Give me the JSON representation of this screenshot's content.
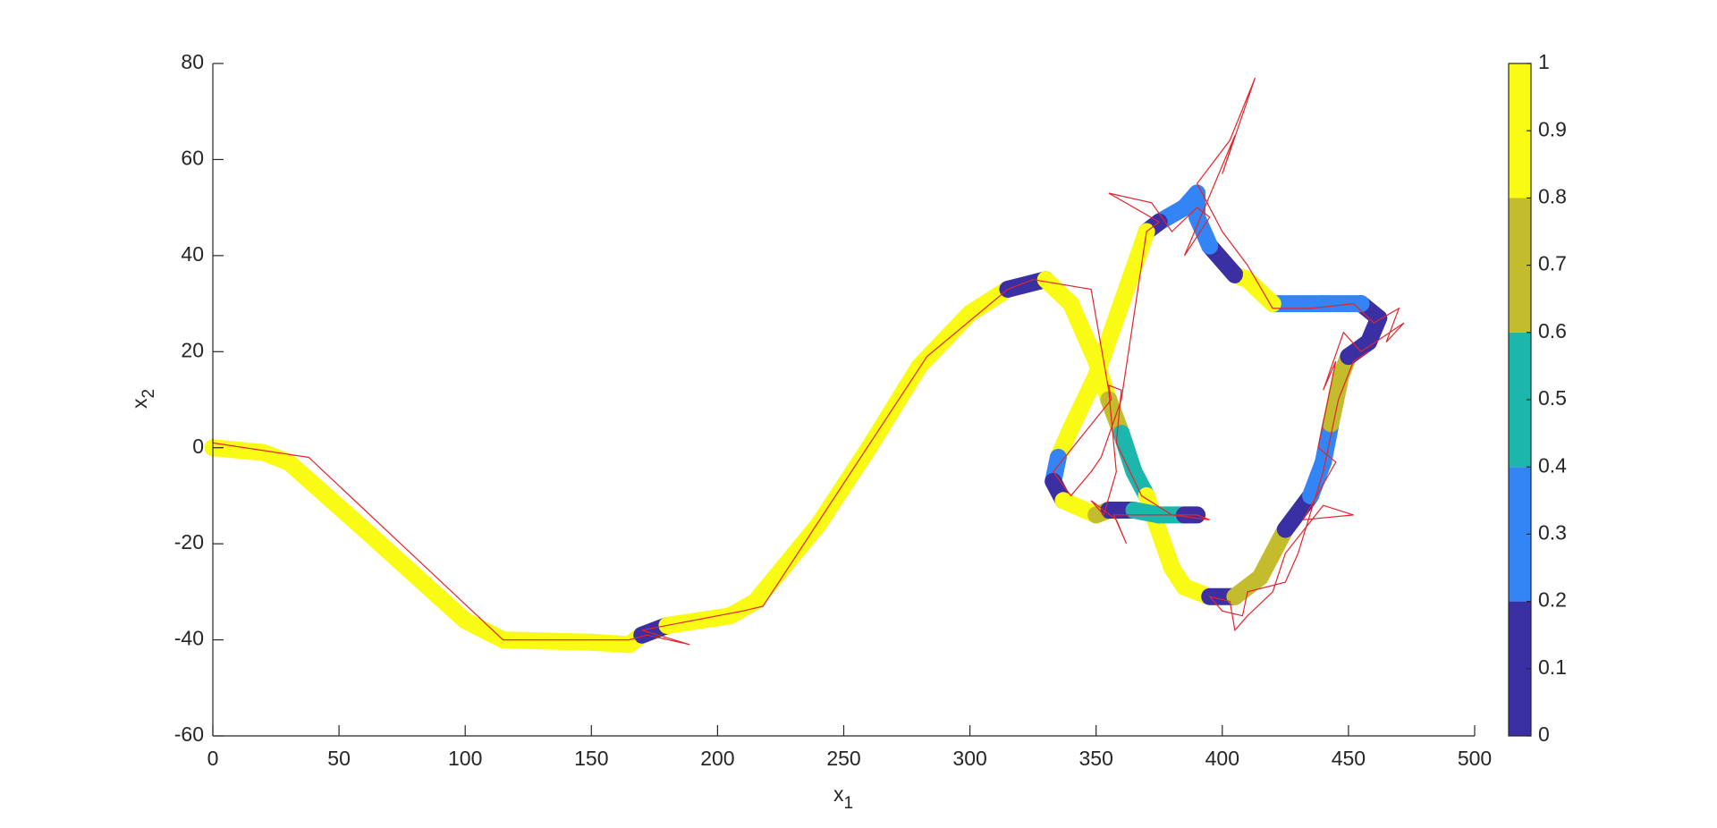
{
  "chart_data": {
    "type": "trajectory",
    "xlabel": "x",
    "xlabel_sub": "1",
    "ylabel": "x",
    "ylabel_sub": "2",
    "xlim": [
      0,
      500
    ],
    "xticks": [
      0,
      50,
      100,
      150,
      200,
      250,
      300,
      350,
      400,
      450,
      500
    ],
    "ylim": [
      -60,
      80
    ],
    "yticks": [
      -60,
      -40,
      -20,
      0,
      20,
      40,
      60,
      80
    ],
    "colorbar": {
      "lim": [
        0,
        1
      ],
      "ticks": [
        0,
        0.1,
        0.2,
        0.3,
        0.4,
        0.5,
        0.6,
        0.7,
        0.8,
        0.9,
        1
      ],
      "bounds": [
        0,
        0.2,
        0.4,
        0.6,
        0.8,
        1
      ],
      "colors": [
        "#3a2fa3",
        "#3384f5",
        "#1db6ad",
        "#c3bc2d",
        "#f9fb15"
      ]
    },
    "series": [
      {
        "x": [
          0,
          20,
          30,
          60,
          100,
          115,
          150,
          165,
          170,
          180,
          205,
          215,
          240,
          260,
          280,
          300,
          315,
          330,
          340,
          350,
          355,
          360,
          365,
          370,
          380,
          385,
          395,
          405,
          415,
          425,
          435,
          440,
          443,
          447,
          450,
          458,
          462,
          455,
          440,
          420,
          410,
          405,
          395,
          390,
          390,
          385,
          375,
          370,
          360,
          350,
          340,
          335,
          333,
          337,
          350,
          355,
          365,
          375,
          385,
          390
        ],
        "y": [
          0,
          -1,
          -3,
          -17,
          -36,
          -40,
          -40.5,
          -41,
          -39,
          -37,
          -35,
          -32,
          -16,
          0,
          17,
          28,
          33,
          35,
          30,
          18,
          10,
          3,
          -5,
          -10,
          -25,
          -29,
          -31,
          -31,
          -27,
          -17,
          -10,
          -3,
          5,
          15,
          19,
          22,
          27,
          30,
          30,
          30,
          35,
          36,
          42,
          48,
          53,
          50,
          47,
          45,
          30,
          15,
          4,
          -2,
          -7,
          -11,
          -14,
          -13,
          -13,
          -14,
          -14,
          -14
        ],
        "c": [
          1,
          1,
          1,
          1,
          1,
          1,
          1,
          1,
          0.1,
          1,
          1,
          1,
          1,
          1,
          1,
          1,
          0.1,
          1,
          1,
          1,
          0.7,
          0.5,
          0.5,
          1,
          1,
          0.9,
          0.1,
          0.7,
          0.7,
          0.1,
          0.3,
          0.3,
          0.7,
          0.7,
          0.1,
          0.1,
          0.1,
          0.3,
          0.3,
          0.9,
          0.9,
          0.1,
          0.3,
          0.3,
          0.3,
          0.3,
          0.1,
          1,
          1,
          1,
          1,
          0.3,
          0.1,
          1,
          0.7,
          0.1,
          0.5,
          0.5,
          0.1,
          0.1
        ]
      },
      {
        "color": "#e3242b",
        "x": [
          0,
          0,
          38,
          115,
          165,
          172,
          189,
          170,
          210,
          218,
          283,
          315,
          325,
          348,
          355,
          358,
          353,
          348,
          358,
          362,
          357,
          390,
          395,
          380,
          368,
          358,
          360,
          355,
          356,
          333,
          340,
          348,
          352,
          360,
          370,
          375,
          355,
          372,
          380,
          390,
          395,
          385,
          405,
          400,
          413,
          403,
          390,
          400,
          410,
          420,
          435,
          452,
          460,
          470,
          465,
          472,
          455,
          448,
          440,
          445,
          438,
          445,
          432,
          452,
          440,
          425,
          420,
          410,
          405,
          403,
          395,
          400,
          408,
          410,
          425,
          430,
          440,
          446,
          452,
          458
        ],
        "y": [
          2,
          1,
          -2,
          -40,
          -40,
          -39,
          -41,
          -38,
          -34,
          -33,
          19,
          33,
          35,
          33,
          12,
          -5,
          -14,
          -11,
          -15,
          -20,
          -14,
          -14,
          -15,
          -14,
          -10,
          1,
          12,
          13,
          10,
          -5,
          -10,
          -5,
          -2,
          10,
          45,
          47,
          53,
          51,
          45,
          50,
          48,
          40,
          65,
          57,
          77,
          64,
          55,
          45,
          38,
          29,
          29,
          30,
          26,
          29,
          22,
          26,
          20,
          24,
          12,
          18,
          0,
          -3,
          -15,
          -14,
          -12,
          -22,
          -30,
          -35,
          -38,
          -32,
          -31,
          -34,
          -35,
          -30,
          -28,
          -22,
          -5,
          10,
          18,
          20
        ]
      }
    ]
  }
}
